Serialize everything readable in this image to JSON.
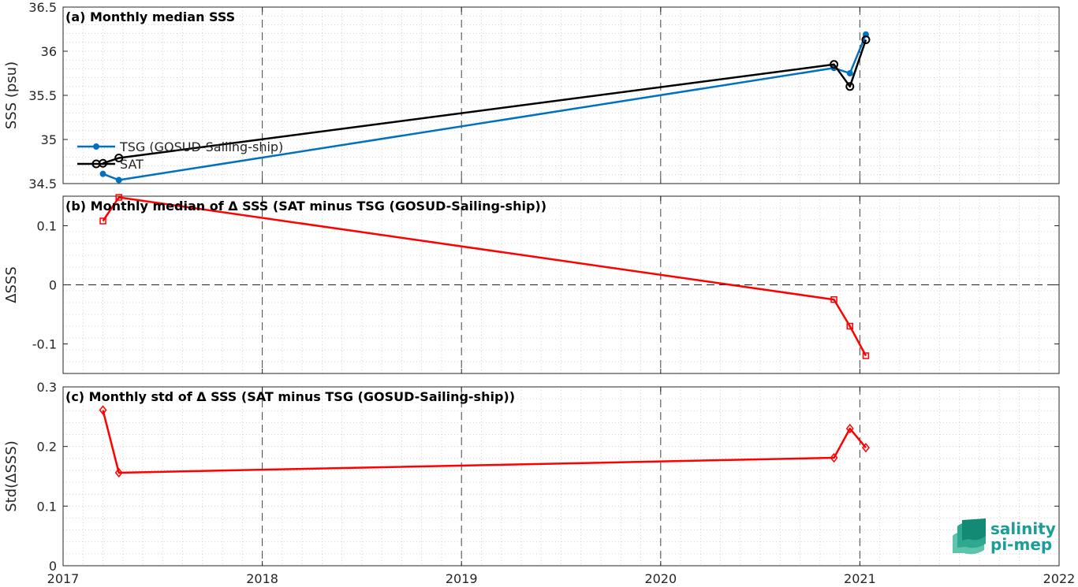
{
  "chart_data": [
    {
      "id": "a",
      "type": "line",
      "title": "(a) Monthly median SSS",
      "ylabel": "SSS (psu)",
      "ylim": [
        34.5,
        36.5
      ],
      "yticks": [
        34.5,
        35,
        35.5,
        36,
        36.5
      ],
      "ytick_labels": [
        "34.5",
        "35",
        "35.5",
        "36",
        "36.5"
      ],
      "xlim": [
        2017,
        2022
      ],
      "grid": true,
      "legend_position": "left",
      "series": [
        {
          "name": "TSG (GOSUD-Sailing-ship)",
          "color": "#0072bd",
          "marker": "dot",
          "x": [
            2017.2,
            2017.28,
            2020.87,
            2020.95,
            2021.03
          ],
          "y": [
            34.61,
            34.54,
            35.81,
            35.75,
            36.19
          ]
        },
        {
          "name": "SAT",
          "color": "#000000",
          "marker": "circle",
          "x": [
            2017.2,
            2017.28,
            2020.87,
            2020.95,
            2021.03
          ],
          "y": [
            34.73,
            34.79,
            35.85,
            35.6,
            36.13
          ]
        }
      ]
    },
    {
      "id": "b",
      "type": "line",
      "title": "(b) Monthly median of Δ SSS (SAT minus TSG (GOSUD-Sailing-ship))",
      "ylabel": "ΔSSS",
      "ylim": [
        -0.15,
        0.15
      ],
      "yticks": [
        -0.1,
        0,
        0.1
      ],
      "ytick_labels": [
        "-0.1",
        "0",
        "0.1"
      ],
      "xlim": [
        2017,
        2022
      ],
      "grid": true,
      "zero_line": true,
      "series": [
        {
          "color": "#ff0000",
          "marker": "square",
          "x": [
            2017.2,
            2017.28,
            2020.87,
            2020.95,
            2021.03
          ],
          "y": [
            0.108,
            0.148,
            -0.025,
            -0.07,
            -0.12
          ]
        }
      ]
    },
    {
      "id": "c",
      "type": "line",
      "title": "(c) Monthly std of Δ SSS (SAT minus TSG (GOSUD-Sailing-ship))",
      "ylabel": "Std(ΔSSS)",
      "ylim": [
        0,
        0.3
      ],
      "yticks": [
        0,
        0.1,
        0.2,
        0.3
      ],
      "ytick_labels": [
        "0",
        "0.1",
        "0.2",
        "0.3"
      ],
      "xlim": [
        2017,
        2022
      ],
      "xticks": [
        2017,
        2018,
        2019,
        2020,
        2021,
        2022
      ],
      "xtick_labels": [
        "2017",
        "2018",
        "2019",
        "2020",
        "2021",
        "2022"
      ],
      "grid": true,
      "series": [
        {
          "color": "#ff0000",
          "marker": "diamond",
          "x": [
            2017.2,
            2017.28,
            2020.87,
            2020.95,
            2021.03
          ],
          "y": [
            0.261,
            0.156,
            0.181,
            0.23,
            0.198
          ]
        }
      ]
    }
  ],
  "logo": {
    "line1": "salinity",
    "line2": "pi-mep",
    "color": "#1a9e95"
  }
}
